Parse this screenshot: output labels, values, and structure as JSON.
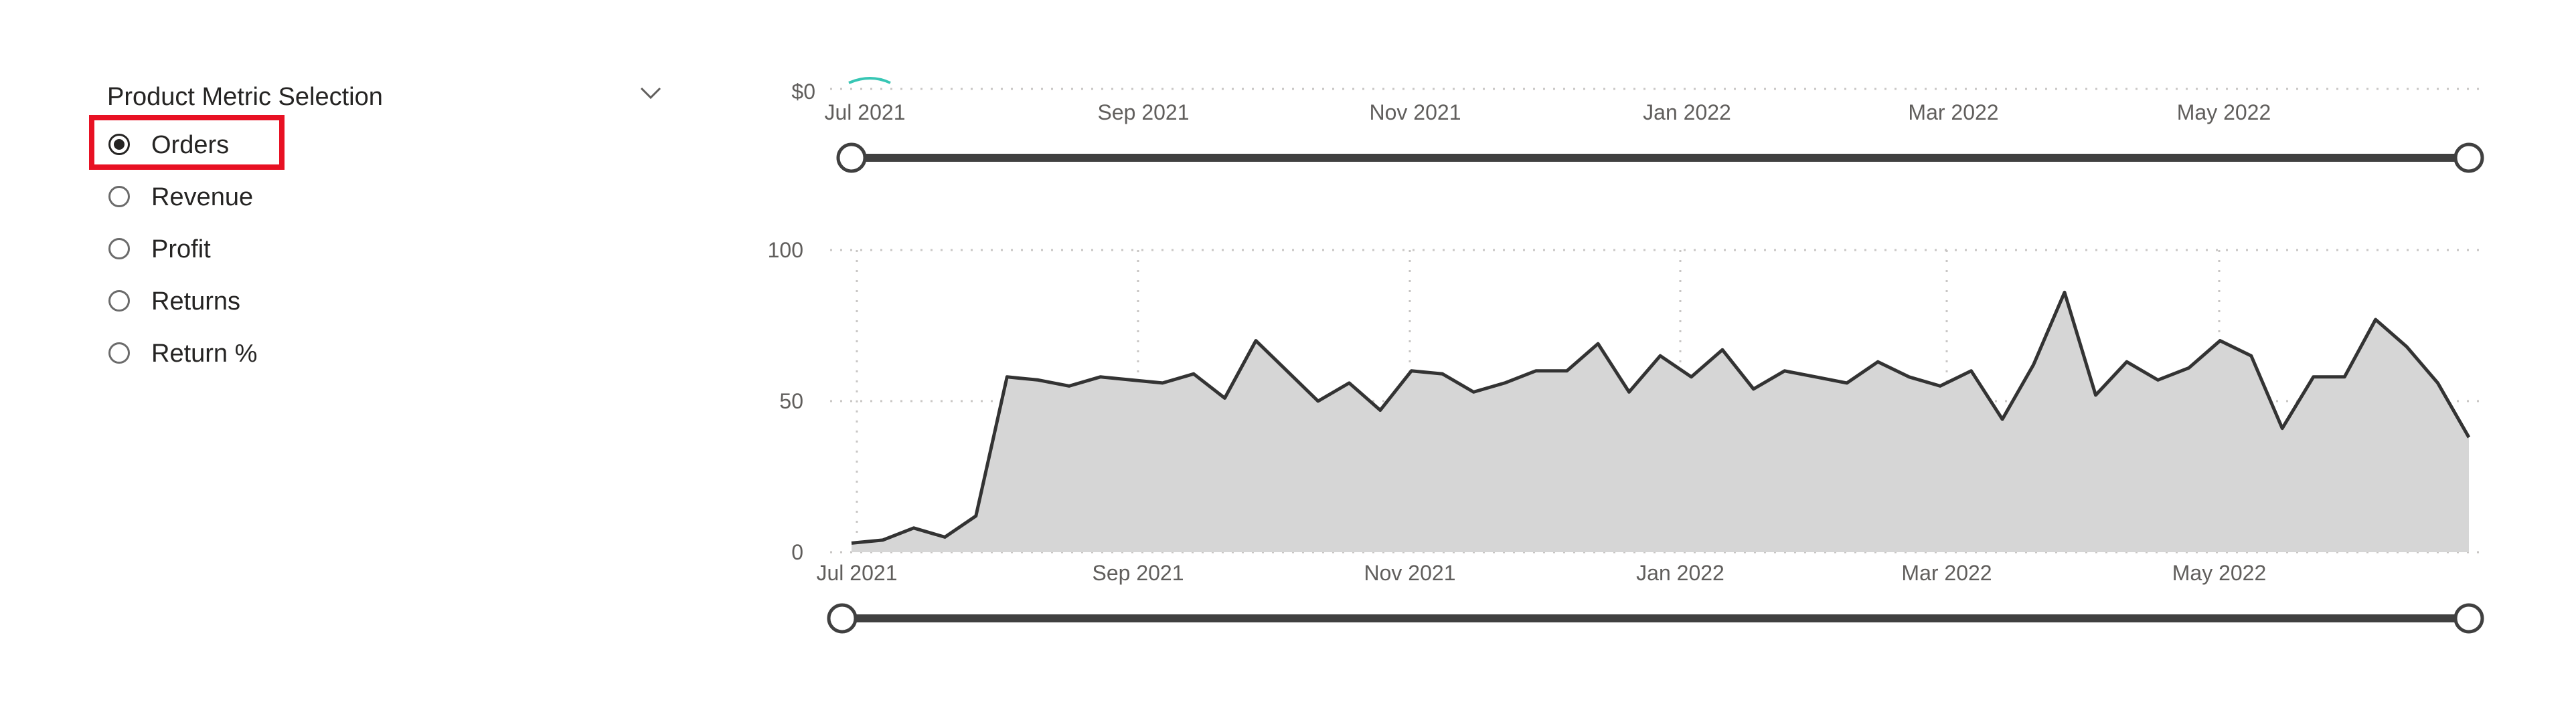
{
  "slicer": {
    "title": "Product Metric Selection",
    "chevron_icon": "chevron-down-icon",
    "selected": "Orders",
    "options": [
      {
        "label": "Orders",
        "checked": true
      },
      {
        "label": "Revenue",
        "checked": false
      },
      {
        "label": "Profit",
        "checked": false
      },
      {
        "label": "Returns",
        "checked": false
      },
      {
        "label": "Return %",
        "checked": false
      }
    ],
    "highlight_color": "#e81123"
  },
  "top_chart": {
    "y_tick_visible": "$0",
    "x_ticks": [
      "Jul 2021",
      "Sep 2021",
      "Nov 2021",
      "Jan 2022",
      "Mar 2022",
      "May 2022"
    ],
    "slider": {
      "start": "Jul 2021",
      "end": "May 2022"
    }
  },
  "chart_data": {
    "type": "area",
    "title": "",
    "xlabel": "",
    "ylabel": "",
    "x_ticks": [
      "Jul 2021",
      "Sep 2021",
      "Nov 2021",
      "Jan 2022",
      "Mar 2022",
      "May 2022"
    ],
    "y_ticks": [
      0,
      50,
      100
    ],
    "ylim": [
      0,
      100
    ],
    "grid": true,
    "fill_color": "#d6d6d6",
    "line_color": "#333333",
    "series": [
      {
        "values": [
          3,
          4,
          8,
          5,
          12,
          58,
          57,
          55,
          58,
          57,
          56,
          59,
          51,
          70,
          60,
          50,
          56,
          47,
          60,
          59,
          53,
          56,
          60,
          60,
          69,
          53,
          65,
          58,
          67,
          54,
          60,
          58,
          56,
          63,
          58,
          55,
          60,
          44,
          62,
          86,
          52,
          63,
          57,
          61,
          70,
          65,
          41,
          58,
          58,
          77,
          68,
          56,
          38
        ]
      }
    ]
  }
}
